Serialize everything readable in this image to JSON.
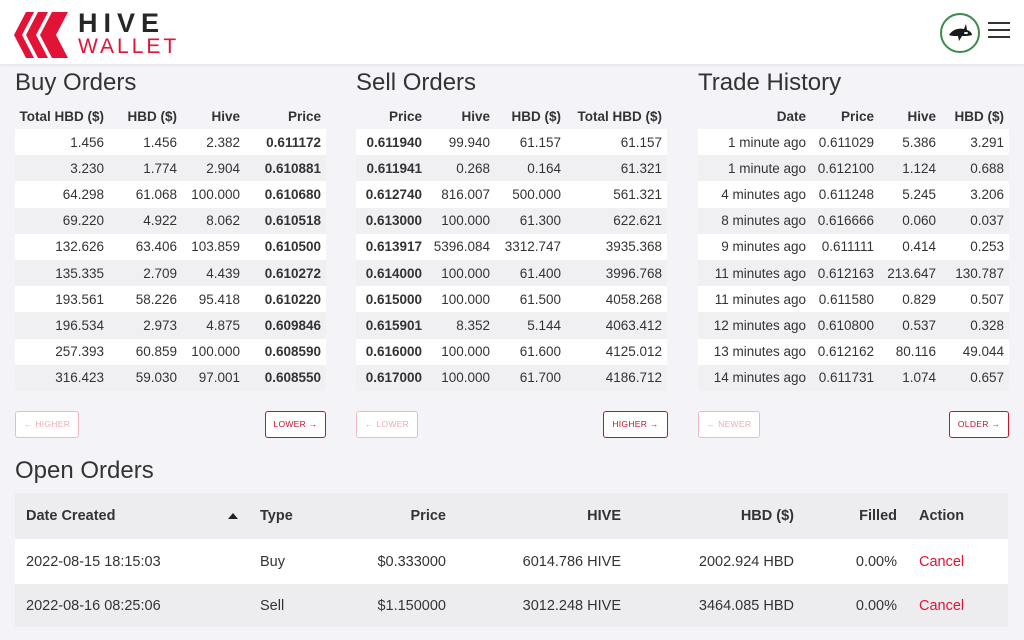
{
  "colors": {
    "accent": "#e31337",
    "price_up": "#2e8b57",
    "price_down": "#d33355"
  },
  "header": {
    "logo_top": "HIVE",
    "logo_bottom": "WALLET",
    "avatar_icon": "orca-icon",
    "menu_icon": "hamburger-icon"
  },
  "buy_orders": {
    "title": "Buy Orders",
    "columns": [
      "Total HBD ($)",
      "HBD ($)",
      "Hive",
      "Price"
    ],
    "rows": [
      [
        "1.456",
        "1.456",
        "2.382",
        "0.611172"
      ],
      [
        "3.230",
        "1.774",
        "2.904",
        "0.610881"
      ],
      [
        "64.298",
        "61.068",
        "100.000",
        "0.610680"
      ],
      [
        "69.220",
        "4.922",
        "8.062",
        "0.610518"
      ],
      [
        "132.626",
        "63.406",
        "103.859",
        "0.610500"
      ],
      [
        "135.335",
        "2.709",
        "4.439",
        "0.610272"
      ],
      [
        "193.561",
        "58.226",
        "95.418",
        "0.610220"
      ],
      [
        "196.534",
        "2.973",
        "4.875",
        "0.609846"
      ],
      [
        "257.393",
        "60.859",
        "100.000",
        "0.608590"
      ],
      [
        "316.423",
        "59.030",
        "97.001",
        "0.608550"
      ]
    ],
    "prev": "← HIGHER",
    "next": "LOWER →"
  },
  "sell_orders": {
    "title": "Sell Orders",
    "columns": [
      "Price",
      "Hive",
      "HBD ($)",
      "Total HBD ($)"
    ],
    "rows": [
      [
        "0.611940",
        "99.940",
        "61.157",
        "61.157"
      ],
      [
        "0.611941",
        "0.268",
        "0.164",
        "61.321"
      ],
      [
        "0.612740",
        "816.007",
        "500.000",
        "561.321"
      ],
      [
        "0.613000",
        "100.000",
        "61.300",
        "622.621"
      ],
      [
        "0.613917",
        "5396.084",
        "3312.747",
        "3935.368"
      ],
      [
        "0.614000",
        "100.000",
        "61.400",
        "3996.768"
      ],
      [
        "0.615000",
        "100.000",
        "61.500",
        "4058.268"
      ],
      [
        "0.615901",
        "8.352",
        "5.144",
        "4063.412"
      ],
      [
        "0.616000",
        "100.000",
        "61.600",
        "4125.012"
      ],
      [
        "0.617000",
        "100.000",
        "61.700",
        "4186.712"
      ]
    ],
    "prev": "← LOWER",
    "next": "HIGHER →"
  },
  "trade_history": {
    "title": "Trade History",
    "columns": [
      "Date",
      "Price",
      "Hive",
      "HBD ($)"
    ],
    "rows": [
      [
        "1 minute ago",
        "0.611029",
        "5.386",
        "3.291",
        "down"
      ],
      [
        "1 minute ago",
        "0.612100",
        "1.124",
        "0.688",
        "down"
      ],
      [
        "4 minutes ago",
        "0.611248",
        "5.245",
        "3.206",
        "up"
      ],
      [
        "8 minutes ago",
        "0.616666",
        "0.060",
        "0.037",
        "up"
      ],
      [
        "9 minutes ago",
        "0.611111",
        "0.414",
        "0.253",
        "up"
      ],
      [
        "11 minutes ago",
        "0.612163",
        "213.647",
        "130.787",
        "up"
      ],
      [
        "11 minutes ago",
        "0.611580",
        "0.829",
        "0.507",
        "up"
      ],
      [
        "12 minutes ago",
        "0.610800",
        "0.537",
        "0.328",
        "up"
      ],
      [
        "13 minutes ago",
        "0.612162",
        "80.116",
        "49.044",
        "up"
      ],
      [
        "14 minutes ago",
        "0.611731",
        "1.074",
        "0.657",
        "up"
      ]
    ],
    "prev": "← NEWER",
    "next": "OLDER →"
  },
  "open_orders": {
    "title": "Open Orders",
    "columns": [
      "Date Created",
      "Type",
      "Price",
      "HIVE",
      "HBD ($)",
      "Filled",
      "Action"
    ],
    "rows": [
      [
        "2022-08-15 18:15:03",
        "Buy",
        "$0.333000",
        "6014.786 HIVE",
        "2002.924 HBD",
        "0.00%",
        "Cancel"
      ],
      [
        "2022-08-16 08:25:06",
        "Sell",
        "$1.150000",
        "3012.248 HIVE",
        "3464.085 HBD",
        "0.00%",
        "Cancel"
      ]
    ]
  }
}
